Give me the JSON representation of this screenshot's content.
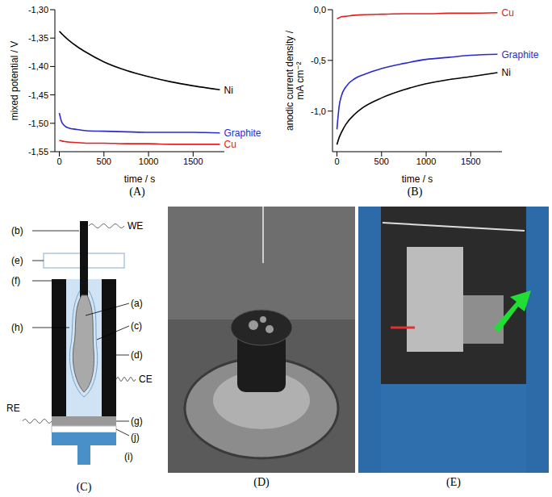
{
  "chart_data": [
    {
      "panel": "(A)",
      "type": "line",
      "x_label": "time / s",
      "y_label": "mixed potential / V",
      "x": [
        0,
        25,
        50,
        100,
        200,
        300,
        500,
        750,
        1000,
        1250,
        1500,
        1800
      ],
      "xlim": [
        -50,
        1850
      ],
      "xticks": [
        0,
        500,
        1000,
        1500
      ],
      "ylim": [
        -1.55,
        -1.3
      ],
      "yticks": [
        {
          "value": -1.55,
          "label": "-1,55"
        },
        {
          "value": -1.5,
          "label": "-1,50"
        },
        {
          "value": -1.45,
          "label": "-1,45"
        },
        {
          "value": -1.4,
          "label": "-1,40"
        },
        {
          "value": -1.35,
          "label": "-1,35"
        },
        {
          "value": -1.3,
          "label": "-1,30"
        }
      ],
      "grid": false,
      "series": [
        {
          "name": "Ni",
          "color": "#000000",
          "values": [
            -1.338,
            -1.342,
            -1.346,
            -1.353,
            -1.365,
            -1.375,
            -1.392,
            -1.407,
            -1.418,
            -1.427,
            -1.434,
            -1.441
          ]
        },
        {
          "name": "Graphite",
          "color": "#2a2ad0",
          "values": [
            -1.482,
            -1.497,
            -1.503,
            -1.508,
            -1.511,
            -1.513,
            -1.514,
            -1.515,
            -1.516,
            -1.516,
            -1.516,
            -1.517
          ]
        },
        {
          "name": "Cu",
          "color": "#e02020",
          "values": [
            -1.53,
            -1.531,
            -1.532,
            -1.533,
            -1.534,
            -1.535,
            -1.535,
            -1.536,
            -1.536,
            -1.537,
            -1.537,
            -1.537
          ]
        }
      ]
    },
    {
      "panel": "(B)",
      "type": "line",
      "x_label": "time / s",
      "y_label": "anodic current density / mA cm⁻²",
      "x": [
        0,
        25,
        50,
        100,
        200,
        300,
        500,
        750,
        1000,
        1250,
        1500,
        1800
      ],
      "xlim": [
        -50,
        1850
      ],
      "xticks": [
        0,
        500,
        1000,
        1500
      ],
      "ylim": [
        -1.4,
        0
      ],
      "yticks": [
        {
          "value": -1,
          "label": "-1,0"
        },
        {
          "value": -0.5,
          "label": "-0,5"
        },
        {
          "value": 0,
          "label": "0,0"
        }
      ],
      "grid": false,
      "series": [
        {
          "name": "Cu",
          "color": "#e02020",
          "values": [
            -0.09,
            -0.08,
            -0.07,
            -0.065,
            -0.055,
            -0.05,
            -0.045,
            -0.04,
            -0.04,
            -0.035,
            -0.035,
            -0.03
          ]
        },
        {
          "name": "Graphite",
          "color": "#2a2ad0",
          "values": [
            -1.18,
            -0.95,
            -0.85,
            -0.76,
            -0.68,
            -0.64,
            -0.58,
            -0.53,
            -0.49,
            -0.47,
            -0.45,
            -0.44
          ]
        },
        {
          "name": "Ni",
          "color": "#000000",
          "values": [
            -1.33,
            -1.26,
            -1.21,
            -1.13,
            -1.03,
            -0.96,
            -0.87,
            -0.79,
            -0.73,
            -0.69,
            -0.66,
            -0.62
          ]
        }
      ]
    }
  ],
  "diagram": {
    "panel": "(C)",
    "parts": {
      "a": "(a)",
      "b": "(b)",
      "c": "(c)",
      "d": "(d)",
      "e": "(e)",
      "f": "(f)",
      "g": "(g)",
      "h": "(h)",
      "i": "(i)",
      "j": "(j)"
    },
    "leads": {
      "WE": "WE",
      "CE": "CE",
      "RE": "RE"
    }
  },
  "photos": [
    {
      "panel": "(D)"
    },
    {
      "panel": "(E)"
    }
  ]
}
